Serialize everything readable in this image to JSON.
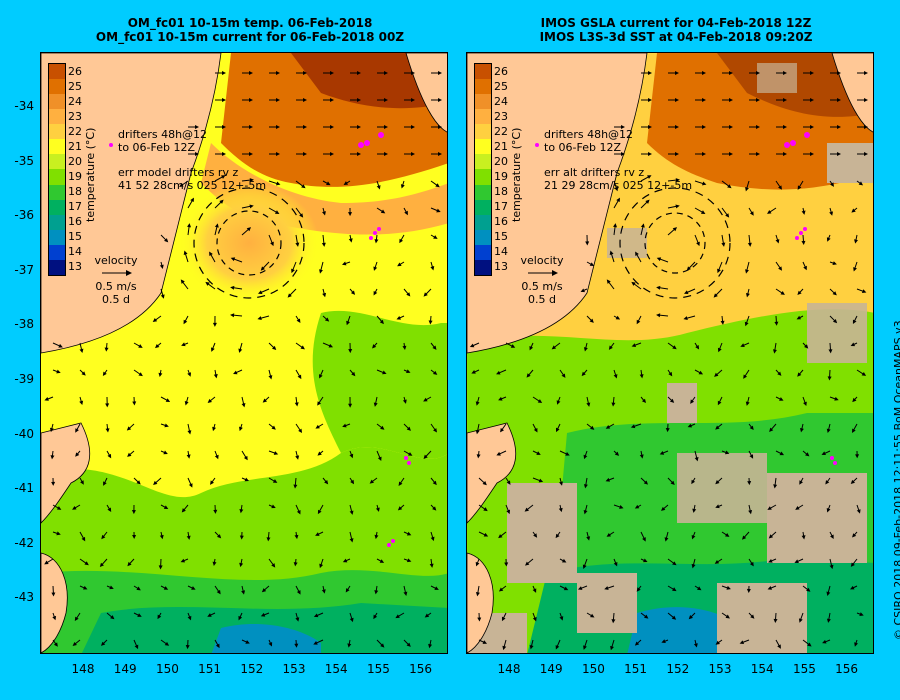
{
  "left_panel": {
    "title_line1": "OM_fc01 10-15m temp. 06-Feb-2018",
    "title_line2": "OM_fc01 10-15m current for 06-Feb-2018 00Z",
    "drifters_line1": "drifters 48h@12",
    "drifters_line2": "to 06-Feb 12Z",
    "err_line1": "err model drifters rv z",
    "err_line2": "41 52 28cm/s 025 12+-5m"
  },
  "right_panel": {
    "title_line1": "IMOS GSLA current for 04-Feb-2018 12Z",
    "title_line2": "IMOS L3S-3d SST at 04-Feb-2018 09:20Z",
    "drifters_line1": "drifters 48h@12",
    "drifters_line2": "to 06-Feb 12Z",
    "err_line1": "err alt drifters rv z",
    "err_line2": "21 29 28cm/s 025 12+-5m"
  },
  "colorbar": {
    "title": "temperature (°C)",
    "labels": [
      "26",
      "25",
      "24",
      "23",
      "22",
      "21",
      "20",
      "19",
      "18",
      "17",
      "16",
      "15",
      "14",
      "13"
    ],
    "colors": [
      "#c85000",
      "#e07000",
      "#f09028",
      "#ffb040",
      "#ffd040",
      "#ffff20",
      "#c8f020",
      "#80e000",
      "#30c830",
      "#00b060",
      "#00a090",
      "#0090c0",
      "#0040d0",
      "#001080"
    ]
  },
  "velocity_legend": {
    "label": "velocity",
    "speed": "0.5 m/s",
    "duration": "0.5 d"
  },
  "axes": {
    "lat_ticks": [
      "-34",
      "-35",
      "-36",
      "-37",
      "-38",
      "-39",
      "-40",
      "-41",
      "-42",
      "-43"
    ],
    "lon_ticks": [
      "148",
      "149",
      "150",
      "151",
      "152",
      "153",
      "154",
      "155",
      "156"
    ]
  },
  "credit": "© CSIRO 2018   09-Feb-2018 12:11:55 BoM OceanMAPS v3",
  "colors": {
    "background": "#00ccff",
    "land": "#ffc896",
    "cloud_mask": "#c8b496",
    "drifter": "#ff00ff"
  }
}
